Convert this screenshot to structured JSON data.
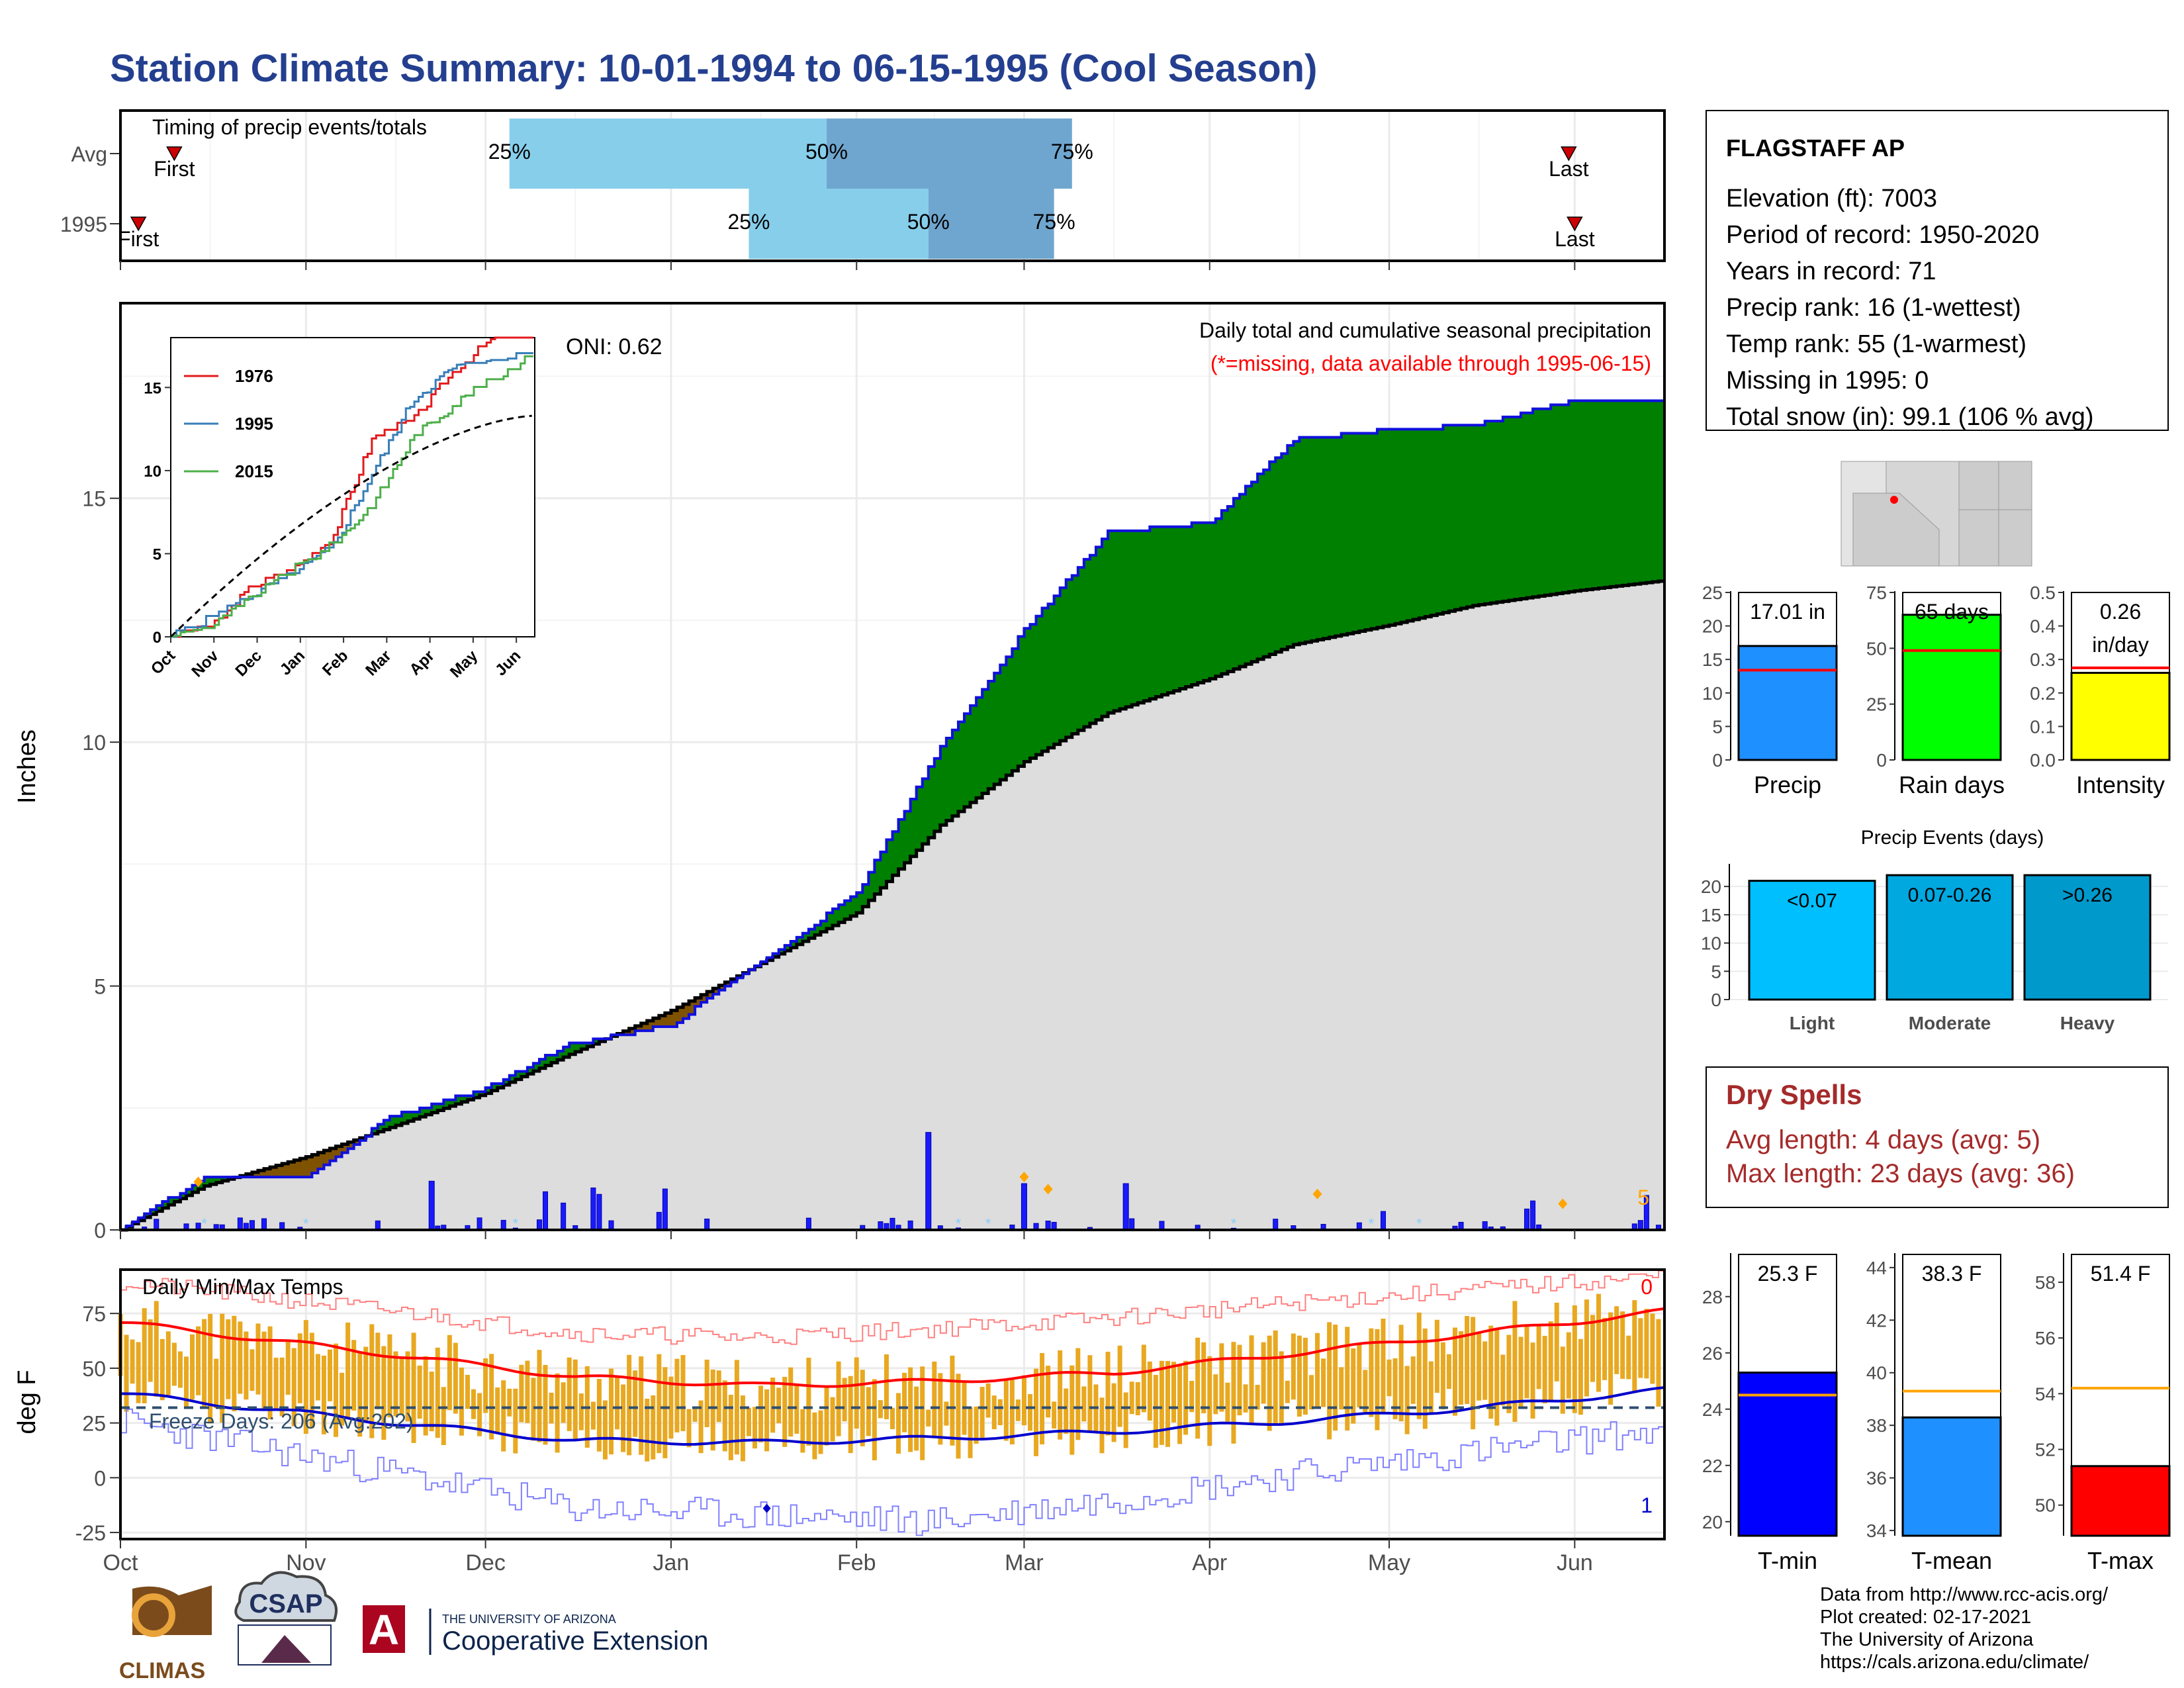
{
  "title": "Station Climate Summary: 10-01-1994 to 06-15-1995 (Cool Season)",
  "colors": {
    "title": "#243f8f",
    "cum_precip_line": "#1010dd",
    "above_avg_fill": "#008000",
    "below_avg_fill": "#7f5200",
    "avg_cum_fill": "#dddddd",
    "daily_precip_bar": "#1a1aff",
    "temp_bars": "#e8a820",
    "tmax_avg": "#ff0000",
    "tmin_avg": "#0000cc",
    "dry_spells_text": "#a52a2a",
    "missing_note": "#ff0000"
  },
  "timing": {
    "title": "Timing of precip events/totals",
    "rows": [
      {
        "label": "Avg",
        "first": "First",
        "last": "Last",
        "p25": "25%",
        "p50": "50%",
        "p75": "75%"
      },
      {
        "label": "1995",
        "first": "First",
        "last": "Last",
        "p25": "25%",
        "p50": "50%",
        "p75": "75%"
      }
    ]
  },
  "main_panel": {
    "caption": "Daily total and cumulative seasonal precipitation",
    "missing_note": "(*=missing, data available through 1995-06-15)",
    "oni": "ONI: 0.62",
    "ylabel": "Inches",
    "yticks": [
      "0",
      "5",
      "10",
      "15"
    ],
    "corner_count": "5"
  },
  "inset": {
    "legend": [
      "1976",
      "1995",
      "2015"
    ],
    "yticks": [
      "0",
      "5",
      "10",
      "15"
    ],
    "xticks": [
      "Oct",
      "Nov",
      "Dec",
      "Jan",
      "Feb",
      "Mar",
      "Apr",
      "May",
      "Jun"
    ]
  },
  "temp_panel": {
    "title": "Daily Min/Max Temps",
    "freeze": "Freeze Days: 206 (Avg:202)",
    "ylabel": "deg F",
    "yticks": [
      "-25",
      "0",
      "25",
      "50",
      "75"
    ],
    "top_count": "0",
    "bottom_count": "1"
  },
  "xaxis_months": [
    "Oct",
    "Nov",
    "Dec",
    "Jan",
    "Feb",
    "Mar",
    "Apr",
    "May",
    "Jun"
  ],
  "station": {
    "name": "FLAGSTAFF AP",
    "lines": [
      "Elevation (ft): 7003",
      "Period of record: 1950-2020",
      "Years in record: 71",
      "Precip rank: 16 (1-wettest)",
      "Temp rank: 55 (1-warmest)",
      "Missing in 1995: 0",
      "Total snow (in): 99.1 (106 % avg)"
    ]
  },
  "mini_bars": [
    {
      "label": "Precip",
      "value_text": "17.01 in",
      "value": 17.01,
      "avg": 13.4,
      "ylim": [
        0,
        25
      ],
      "yticks": [
        "0",
        "5",
        "10",
        "15",
        "20",
        "25"
      ],
      "color": "#1e90ff"
    },
    {
      "label": "Rain days",
      "value_text": "65 days",
      "value": 65,
      "avg": 49,
      "ylim": [
        0,
        75
      ],
      "yticks": [
        "0",
        "25",
        "50",
        "75"
      ],
      "color": "#00ff00"
    },
    {
      "label": "Intensity",
      "value_text": "0.26",
      "value_text2": "in/day",
      "value": 0.26,
      "avg": 0.275,
      "ylim": [
        0,
        0.5
      ],
      "yticks": [
        "0.0",
        "0.1",
        "0.2",
        "0.3",
        "0.4",
        "0.5"
      ],
      "color": "#ffff00"
    }
  ],
  "precip_events": {
    "title": "Precip Events (days)",
    "yticks": [
      "0",
      "5",
      "10",
      "15",
      "20"
    ],
    "bars": [
      {
        "label": "Light",
        "value_text": "<0.07",
        "value": 21,
        "color": "#00bfff"
      },
      {
        "label": "Moderate",
        "value_text": "0.07-0.26",
        "value": 22,
        "color": "#00a8e0"
      },
      {
        "label": "Heavy",
        "value_text": ">0.26",
        "value": 22,
        "color": "#0099cc"
      }
    ]
  },
  "dry_spells": {
    "title": "Dry Spells",
    "avg": "Avg length: 4 days (avg: 5)",
    "max": "Max length: 23 days (avg: 36)"
  },
  "temp_bars": [
    {
      "label": "T-min",
      "value_text": "25.3 F",
      "value": 25.3,
      "avg": 24.5,
      "ylim": [
        19.5,
        29.5
      ],
      "yticks": [
        "20",
        "22",
        "24",
        "26",
        "28"
      ],
      "color": "#0000ff"
    },
    {
      "label": "T-mean",
      "value_text": "38.3 F",
      "value": 38.3,
      "avg": 39.3,
      "ylim": [
        33.8,
        44.5
      ],
      "yticks": [
        "34",
        "36",
        "38",
        "40",
        "42",
        "44"
      ],
      "color": "#1e90ff"
    },
    {
      "label": "T-max",
      "value_text": "51.4 F",
      "value": 51.4,
      "avg": 54.2,
      "ylim": [
        48.9,
        59.0
      ],
      "yticks": [
        "50",
        "52",
        "54",
        "56",
        "58"
      ],
      "color": "#ff0000"
    }
  ],
  "logos": {
    "climas": "CLIMAS",
    "csap": "CSAP",
    "ua_top": "THE UNIVERSITY OF ARIZONA",
    "ua_main": "Cooperative Extension",
    "ua_letter": "A"
  },
  "credits": [
    "Data from http://www.rcc-acis.org/",
    "Plot created: 02-17-2021",
    "The University of Arizona",
    "https://cals.arizona.edu/climate/"
  ],
  "chart_data": [
    {
      "type": "bar",
      "title": "Timing of precip events/totals",
      "categories": [
        "Avg",
        "1995"
      ],
      "series": [
        {
          "name": "First",
          "values": [
            "1994-10-10",
            "1994-10-04"
          ]
        },
        {
          "name": "25%",
          "values": [
            "1994-12-05",
            "1995-01-14"
          ]
        },
        {
          "name": "50%",
          "values": [
            "1995-01-27",
            "1995-02-13"
          ]
        },
        {
          "name": "75%",
          "values": [
            "1995-03-09",
            "1995-03-06"
          ]
        },
        {
          "name": "Last",
          "values": [
            "1995-05-31",
            "1995-06-01"
          ]
        }
      ]
    },
    {
      "type": "area",
      "title": "Daily total and cumulative seasonal precipitation",
      "ylabel": "Inches",
      "ylim": [
        0,
        19
      ],
      "x": [
        "1994-10-01",
        "1994-10-15",
        "1994-11-01",
        "1994-11-15",
        "1994-12-01",
        "1994-12-15",
        "1995-01-01",
        "1995-01-15",
        "1995-02-01",
        "1995-02-15",
        "1995-03-01",
        "1995-03-15",
        "1995-04-01",
        "1995-04-15",
        "1995-05-01",
        "1995-05-15",
        "1995-06-01",
        "1995-06-15"
      ],
      "series": [
        {
          "name": "1995",
          "values": [
            0,
            1.1,
            1.1,
            2.3,
            2.9,
            3.8,
            4.2,
            5.4,
            6.9,
            9.9,
            12.3,
            14.3,
            14.5,
            16.2,
            16.4,
            16.5,
            17.0,
            17.01
          ]
        },
        {
          "name": "Avg",
          "values": [
            0,
            0.9,
            1.5,
            2.1,
            2.8,
            3.6,
            4.5,
            5.4,
            6.5,
            8.3,
            9.6,
            10.6,
            11.3,
            12.0,
            12.4,
            12.8,
            13.1,
            13.3
          ]
        }
      ]
    },
    {
      "type": "line",
      "title": "Daily Min/Max Temps",
      "ylabel": "deg F",
      "ylim": [
        -28,
        95
      ],
      "x": [
        "Oct",
        "Nov",
        "Dec",
        "Jan",
        "Feb",
        "Mar",
        "Apr",
        "May",
        "Jun"
      ],
      "series": [
        {
          "name": "Avg max",
          "values": [
            66,
            56,
            46,
            42,
            44,
            48,
            57,
            66,
            76
          ]
        },
        {
          "name": "Avg min",
          "values": [
            34,
            25,
            17,
            16,
            18,
            21,
            26,
            32,
            40
          ]
        },
        {
          "name": "Record high",
          "values": [
            85,
            76,
            66,
            64,
            68,
            73,
            80,
            86,
            92
          ]
        },
        {
          "name": "Record low",
          "values": [
            18,
            2,
            -14,
            -17,
            -20,
            -10,
            2,
            12,
            22
          ]
        }
      ],
      "freeze_line": 32
    }
  ]
}
